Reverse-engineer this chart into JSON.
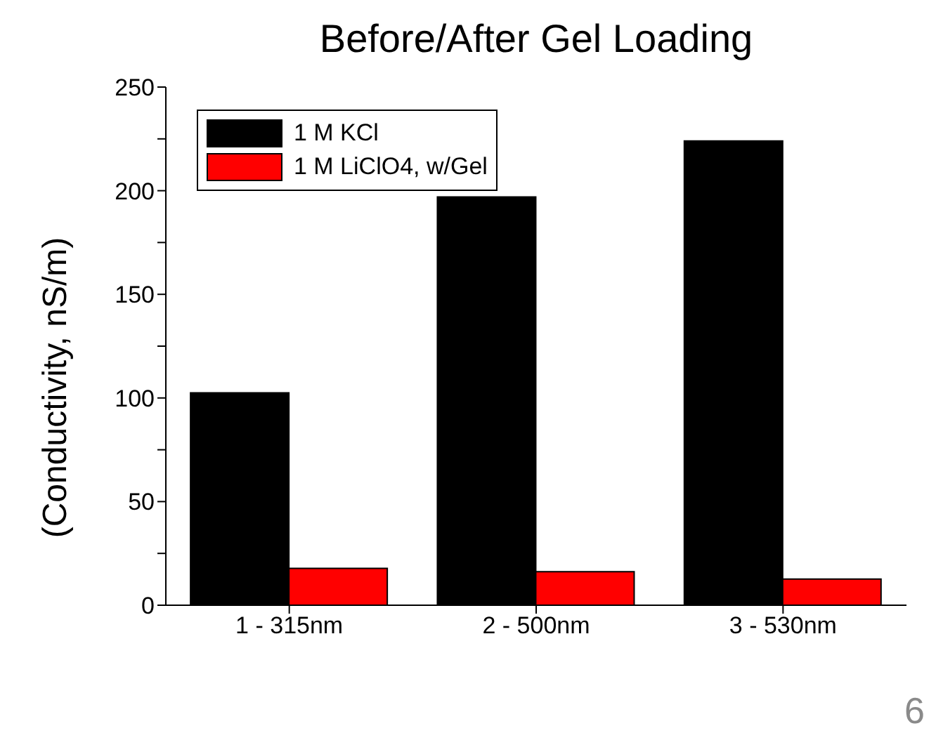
{
  "chart_data": {
    "type": "bar",
    "title": "Before/After Gel Loading",
    "ylabel": "(Conductivity, nS/m)",
    "categories": [
      "1 - 315nm",
      "2 - 500nm",
      "3 - 530nm"
    ],
    "series": [
      {
        "name": "1 M KCl",
        "color": "#000000",
        "values": [
          102.5,
          197,
          224
        ]
      },
      {
        "name": "1 M LiClO4, w/Gel",
        "color": "#ff0000",
        "values": [
          17.8,
          16.2,
          12.6
        ]
      }
    ],
    "ylim": [
      0,
      250
    ],
    "yticks": [
      0,
      {
        "value": 25,
        "label": null
      },
      50,
      {
        "value": 75,
        "label": null
      },
      100,
      {
        "value": 125,
        "label": null
      },
      150,
      {
        "value": 175,
        "label": null
      },
      200,
      {
        "value": 225,
        "label": null
      },
      250
    ],
    "legend": "top left",
    "grid": false,
    "annotations": [
      "6"
    ]
  }
}
